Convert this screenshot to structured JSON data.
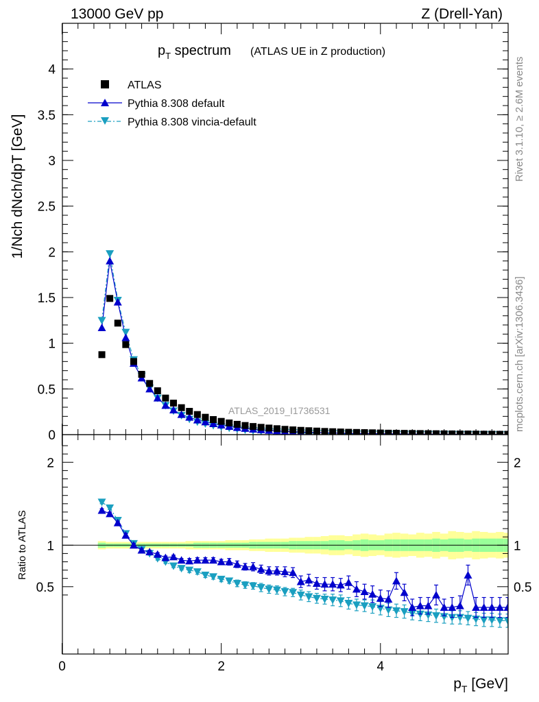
{
  "header": {
    "left": "13000 GeV pp",
    "right": "Z (Drell-Yan)"
  },
  "side": {
    "rivet": "Rivet 3.1.10, ≥ 2.6M events",
    "mcplots": "mcplots.cern.ch [arXiv:1306.3436]"
  },
  "chart_data": [
    {
      "type": "scatter",
      "title_main": "p",
      "title_sub": "T",
      "title_rest": " spectrum",
      "title_note": "(ATLAS UE in Z production)",
      "ylabel": "1/Nch dNch/dpT [GeV]",
      "ylim": [
        0,
        4.5
      ],
      "yticks": [
        "0",
        "0.5",
        "1",
        "1.5",
        "2",
        "2.5",
        "3",
        "3.5",
        "4"
      ],
      "analysis_label": "ATLAS_2019_I1736531",
      "legend": [
        "ATLAS",
        "Pythia 8.308 default",
        "Pythia 8.308 vincia-default"
      ],
      "colors": {
        "data": "#000000",
        "default": "#0000cc",
        "vincia": "#1a9fc0"
      },
      "x": [
        0.5,
        0.6,
        0.7,
        0.8,
        0.9,
        1.0,
        1.1,
        1.2,
        1.3,
        1.4,
        1.5,
        1.6,
        1.7,
        1.8,
        1.9,
        2.0,
        2.1,
        2.2,
        2.3,
        2.4,
        2.5,
        2.6,
        2.7,
        2.8,
        2.9,
        3.0,
        3.1,
        3.2,
        3.3,
        3.4,
        3.5,
        3.6,
        3.7,
        3.8,
        3.9,
        4.0,
        4.1,
        4.2,
        4.3,
        4.4,
        4.5,
        4.6,
        4.7,
        4.8,
        4.9,
        5.0,
        5.1,
        5.2,
        5.3,
        5.4,
        5.5,
        5.6
      ],
      "series": [
        {
          "name": "ATLAS",
          "values": [
            0.875,
            1.49,
            1.22,
            0.985,
            0.8,
            0.66,
            0.56,
            0.48,
            0.4,
            0.345,
            0.295,
            0.255,
            0.22,
            0.19,
            0.165,
            0.145,
            0.128,
            0.113,
            0.1,
            0.089,
            0.08,
            0.072,
            0.065,
            0.058,
            0.052,
            0.047,
            0.043,
            0.039,
            0.035,
            0.032,
            0.029,
            0.026,
            0.024,
            0.022,
            0.02,
            0.018,
            0.016,
            0.015,
            0.014,
            0.013,
            0.012,
            0.011,
            0.01,
            0.009,
            0.008,
            0.007,
            0.007,
            0.006,
            0.005,
            0.005,
            0.004,
            0.004
          ]
        },
        {
          "name": "Pythia 8.308 default",
          "values": [
            1.17,
            1.9,
            1.45,
            1.06,
            0.78,
            0.62,
            0.5,
            0.4,
            0.32,
            0.27,
            0.22,
            0.19,
            0.16,
            0.14,
            0.12,
            0.105,
            0.09,
            0.078,
            0.068,
            0.06,
            0.053,
            0.047,
            0.042,
            0.037,
            0.033,
            0.029,
            0.026,
            0.023,
            0.02,
            0.018,
            0.016,
            0.014,
            0.013,
            0.012,
            0.011,
            0.01,
            0.009,
            0.008,
            0.007,
            0.006,
            0.006,
            0.005,
            0.005,
            0.004,
            0.004,
            0.004,
            0.003,
            0.003,
            0.003,
            0.002,
            0.002,
            0.002
          ]
        },
        {
          "name": "Pythia 8.308 vincia-default",
          "values": [
            1.25,
            1.98,
            1.47,
            1.12,
            0.82,
            0.64,
            0.51,
            0.4,
            0.32,
            0.26,
            0.21,
            0.17,
            0.14,
            0.12,
            0.1,
            0.085,
            0.072,
            0.062,
            0.052,
            0.045,
            0.039,
            0.034,
            0.029,
            0.025,
            0.022,
            0.019,
            0.016,
            0.014,
            0.012,
            0.01,
            0.009,
            0.008,
            0.007,
            0.006,
            0.005,
            0.005,
            0.004,
            0.004,
            0.003,
            0.003,
            0.003,
            0.002,
            0.002,
            0.002,
            0.002,
            0.002,
            0.001,
            0.001,
            0.001,
            0.001,
            0.001,
            0.001
          ]
        }
      ]
    },
    {
      "type": "line",
      "ylabel": "Ratio to ATLAS",
      "xlabel_main": "p",
      "xlabel_sub": "T",
      "xlabel_rest": " [GeV]",
      "xlim": [
        0,
        5.6
      ],
      "ylim": [
        0.35,
        2.25
      ],
      "xticks": [
        "0",
        "2",
        "4"
      ],
      "yticks_left": [
        "0.5",
        "1",
        "2"
      ],
      "yticks_right": [
        "0.5",
        "1",
        "2"
      ],
      "colors": {
        "band_inner": "#99ff99",
        "band_outer": "#ffff99"
      },
      "x": [
        0.5,
        0.6,
        0.7,
        0.8,
        0.9,
        1.0,
        1.1,
        1.2,
        1.3,
        1.4,
        1.5,
        1.6,
        1.7,
        1.8,
        1.9,
        2.0,
        2.1,
        2.2,
        2.3,
        2.4,
        2.5,
        2.6,
        2.7,
        2.8,
        2.9,
        3.0,
        3.1,
        3.2,
        3.3,
        3.4,
        3.5,
        3.6,
        3.7,
        3.8,
        3.9,
        4.0,
        4.1,
        4.2,
        4.3,
        4.4,
        4.5,
        4.6,
        4.7,
        4.8,
        4.9,
        5.0,
        5.1,
        5.2,
        5.3,
        5.4,
        5.5,
        5.6
      ],
      "band_inner": [
        0.03,
        0.02,
        0.02,
        0.02,
        0.02,
        0.02,
        0.02,
        0.02,
        0.02,
        0.02,
        0.02,
        0.02,
        0.03,
        0.03,
        0.03,
        0.03,
        0.03,
        0.03,
        0.03,
        0.04,
        0.04,
        0.04,
        0.04,
        0.04,
        0.05,
        0.05,
        0.05,
        0.05,
        0.05,
        0.06,
        0.06,
        0.05,
        0.06,
        0.07,
        0.06,
        0.06,
        0.07,
        0.07,
        0.07,
        0.07,
        0.07,
        0.07,
        0.08,
        0.07,
        0.08,
        0.08,
        0.07,
        0.08,
        0.08,
        0.08,
        0.08,
        0.08
      ],
      "band_outer": [
        0.05,
        0.04,
        0.04,
        0.04,
        0.04,
        0.04,
        0.04,
        0.04,
        0.04,
        0.04,
        0.04,
        0.05,
        0.05,
        0.05,
        0.05,
        0.05,
        0.06,
        0.06,
        0.06,
        0.07,
        0.07,
        0.08,
        0.08,
        0.08,
        0.09,
        0.09,
        0.1,
        0.1,
        0.11,
        0.12,
        0.12,
        0.11,
        0.13,
        0.14,
        0.13,
        0.12,
        0.14,
        0.15,
        0.14,
        0.13,
        0.15,
        0.14,
        0.16,
        0.14,
        0.17,
        0.16,
        0.15,
        0.17,
        0.16,
        0.15,
        0.16,
        0.15
      ],
      "series": [
        {
          "name": "Pythia 8.308 default",
          "values": [
            1.42,
            1.38,
            1.27,
            1.12,
            1.0,
            0.94,
            0.92,
            0.89,
            0.85,
            0.86,
            0.82,
            0.81,
            0.82,
            0.82,
            0.82,
            0.8,
            0.8,
            0.77,
            0.74,
            0.74,
            0.71,
            0.69,
            0.69,
            0.68,
            0.67,
            0.56,
            0.58,
            0.54,
            0.53,
            0.53,
            0.52,
            0.55,
            0.47,
            0.44,
            0.41,
            0.36,
            0.35,
            0.57,
            0.43,
            0.25,
            0.27,
            0.27,
            0.4,
            0.25,
            0.25,
            0.27,
            0.64,
            0.25,
            0.25,
            0.25,
            0.25,
            0.25
          ],
          "errors": [
            0.02,
            0.02,
            0.02,
            0.02,
            0.02,
            0.02,
            0.02,
            0.02,
            0.02,
            0.02,
            0.02,
            0.03,
            0.03,
            0.03,
            0.03,
            0.03,
            0.04,
            0.04,
            0.04,
            0.05,
            0.05,
            0.05,
            0.05,
            0.06,
            0.06,
            0.07,
            0.07,
            0.07,
            0.08,
            0.08,
            0.08,
            0.08,
            0.09,
            0.09,
            0.1,
            0.1,
            0.1,
            0.1,
            0.1,
            0.1,
            0.1,
            0.1,
            0.12,
            0.1,
            0.12,
            0.12,
            0.12,
            0.12,
            0.12,
            0.12,
            0.12,
            0.12
          ]
        },
        {
          "name": "Pythia 8.308 vincia-default",
          "values": [
            1.52,
            1.45,
            1.3,
            1.14,
            1.02,
            0.95,
            0.9,
            0.84,
            0.8,
            0.75,
            0.72,
            0.7,
            0.68,
            0.64,
            0.62,
            0.59,
            0.57,
            0.54,
            0.52,
            0.51,
            0.49,
            0.47,
            0.46,
            0.44,
            0.43,
            0.4,
            0.38,
            0.36,
            0.35,
            0.34,
            0.33,
            0.3,
            0.28,
            0.27,
            0.26,
            0.24,
            0.22,
            0.21,
            0.2,
            0.18,
            0.17,
            0.16,
            0.15,
            0.14,
            0.13,
            0.13,
            0.12,
            0.11,
            0.1,
            0.1,
            0.09,
            0.09
          ],
          "errors": [
            0.02,
            0.02,
            0.02,
            0.02,
            0.02,
            0.02,
            0.02,
            0.02,
            0.02,
            0.02,
            0.02,
            0.03,
            0.03,
            0.03,
            0.03,
            0.03,
            0.03,
            0.04,
            0.04,
            0.04,
            0.05,
            0.05,
            0.05,
            0.05,
            0.05,
            0.06,
            0.06,
            0.06,
            0.06,
            0.07,
            0.07,
            0.07,
            0.07,
            0.07,
            0.08,
            0.08,
            0.08,
            0.08,
            0.08,
            0.08,
            0.08,
            0.08,
            0.08,
            0.08,
            0.08,
            0.08,
            0.08,
            0.08,
            0.08,
            0.08,
            0.08,
            0.08
          ]
        }
      ]
    }
  ]
}
